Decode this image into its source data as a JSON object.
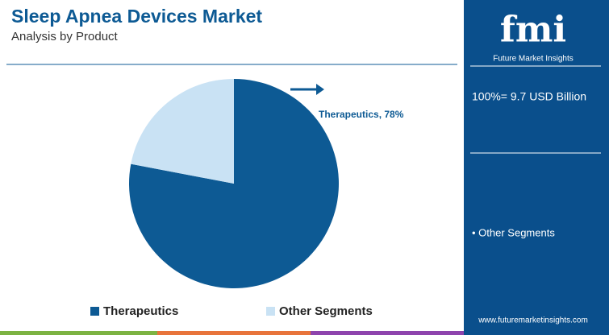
{
  "chart_data": {
    "type": "pie",
    "title": "Sleep Apnea Devices Market",
    "subtitle": "Analysis by Product",
    "categories": [
      "Therapeutics",
      "Other Segments"
    ],
    "values": [
      78,
      22
    ],
    "value_labels": [
      "Therapeutics, 78%",
      null
    ],
    "colors": [
      "#0d5a94",
      "#c9e2f4"
    ]
  },
  "side_panel": {
    "logo": "fmi",
    "brand": "Future Market Insights",
    "total": "100%= 9.7 USD Billion",
    "note": "• Other Segments",
    "url": "www.futuremarketinsights.com"
  }
}
